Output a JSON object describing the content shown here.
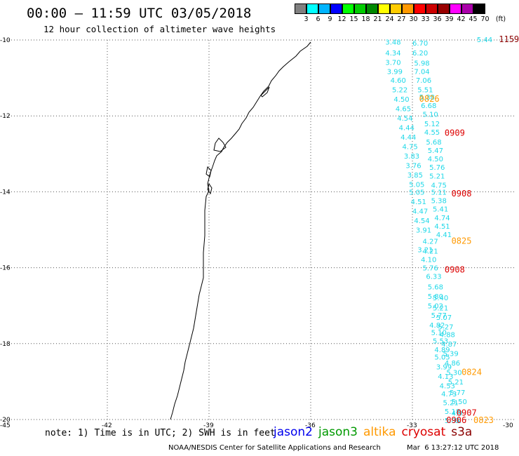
{
  "header": {
    "title": "00:00 – 11:59 UTC 03/05/2018",
    "subtitle": "12 hour collection of altimeter wave heights"
  },
  "color_scale": {
    "unit": "(ft)",
    "bins": [
      {
        "label": "3",
        "color": "#808080"
      },
      {
        "label": "6",
        "color": "#00ffff"
      },
      {
        "label": "9",
        "color": "#00b4ff"
      },
      {
        "label": "12",
        "color": "#0000ff"
      },
      {
        "label": "15",
        "color": "#00ff00"
      },
      {
        "label": "18",
        "color": "#00cc00"
      },
      {
        "label": "21",
        "color": "#008800"
      },
      {
        "label": "24",
        "color": "#ffff00"
      },
      {
        "label": "27",
        "color": "#ffcc00"
      },
      {
        "label": "30",
        "color": "#ff9900"
      },
      {
        "label": "33",
        "color": "#ff0000"
      },
      {
        "label": "36",
        "color": "#cc0000"
      },
      {
        "label": "39",
        "color": "#990000"
      },
      {
        "label": "42",
        "color": "#ff00ff"
      },
      {
        "label": "45",
        "color": "#aa00aa"
      },
      {
        "label": "70",
        "color": "#000000"
      }
    ]
  },
  "axes": {
    "lat_labels": [
      "-10",
      "-12",
      "-14",
      "-16",
      "-18",
      "-20"
    ],
    "lon_labels": [
      "-45",
      "-42",
      "-39",
      "-36",
      "-33",
      "-30"
    ]
  },
  "wave_heights": [
    {
      "v": "3.48",
      "lat": -10.05,
      "lon": -33.8
    },
    {
      "v": "6.70",
      "lat": -10.07,
      "lon": -33.0
    },
    {
      "v": "4.34",
      "lat": -10.33,
      "lon": -33.8
    },
    {
      "v": "6.20",
      "lat": -10.33,
      "lon": -33.0
    },
    {
      "v": "3.70",
      "lat": -10.58,
      "lon": -33.8
    },
    {
      "v": "5.98",
      "lat": -10.6,
      "lon": -32.95
    },
    {
      "v": "3.99",
      "lat": -10.82,
      "lon": -33.75
    },
    {
      "v": "7.04",
      "lat": -10.82,
      "lon": -32.95
    },
    {
      "v": "4.60",
      "lat": -11.05,
      "lon": -33.65
    },
    {
      "v": "7.06",
      "lat": -11.05,
      "lon": -32.9
    },
    {
      "v": "5.22",
      "lat": -11.3,
      "lon": -33.6
    },
    {
      "v": "5.51",
      "lat": -11.3,
      "lon": -32.85
    },
    {
      "v": "4.50",
      "lat": -11.55,
      "lon": -33.55
    },
    {
      "v": "5.38",
      "lat": -11.5,
      "lon": -32.8
    },
    {
      "v": "6.68",
      "lat": -11.72,
      "lon": -32.75
    },
    {
      "v": "4.65",
      "lat": -11.8,
      "lon": -33.5
    },
    {
      "v": "5.10",
      "lat": -11.95,
      "lon": -32.7
    },
    {
      "v": "4.54",
      "lat": -12.05,
      "lon": -33.45
    },
    {
      "v": "5.12",
      "lat": -12.2,
      "lon": -32.65
    },
    {
      "v": "4.44",
      "lat": -12.3,
      "lon": -33.4
    },
    {
      "v": "4.55",
      "lat": -12.42,
      "lon": -32.65
    },
    {
      "v": "4.44",
      "lat": -12.55,
      "lon": -33.35
    },
    {
      "v": "5.68",
      "lat": -12.68,
      "lon": -32.6
    },
    {
      "v": "4.75",
      "lat": -12.8,
      "lon": -33.3
    },
    {
      "v": "5.47",
      "lat": -12.9,
      "lon": -32.55
    },
    {
      "v": "3.83",
      "lat": -13.05,
      "lon": -33.25
    },
    {
      "v": "4.50",
      "lat": -13.12,
      "lon": -32.55
    },
    {
      "v": "3.76",
      "lat": -13.3,
      "lon": -33.2
    },
    {
      "v": "5.76",
      "lat": -13.35,
      "lon": -32.5
    },
    {
      "v": "3.85",
      "lat": -13.55,
      "lon": -33.15
    },
    {
      "v": "5.21",
      "lat": -13.58,
      "lon": -32.5
    },
    {
      "v": "5.05",
      "lat": -13.8,
      "lon": -33.1
    },
    {
      "v": "4.75",
      "lat": -13.82,
      "lon": -32.45
    },
    {
      "v": "5.05",
      "lat": -14.0,
      "lon": -33.1
    },
    {
      "v": "5.11",
      "lat": -14.0,
      "lon": -32.45
    },
    {
      "v": "4.51",
      "lat": -14.25,
      "lon": -33.05
    },
    {
      "v": "5.38",
      "lat": -14.22,
      "lon": -32.45
    },
    {
      "v": "4.47",
      "lat": -14.5,
      "lon": -33.0
    },
    {
      "v": "5.41",
      "lat": -14.45,
      "lon": -32.4
    },
    {
      "v": "4.74",
      "lat": -14.68,
      "lon": -32.35
    },
    {
      "v": "4.54",
      "lat": -14.75,
      "lon": -32.95
    },
    {
      "v": "4.51",
      "lat": -14.9,
      "lon": -32.35
    },
    {
      "v": "3.91",
      "lat": -15.0,
      "lon": -32.9
    },
    {
      "v": "4.41",
      "lat": -15.12,
      "lon": -32.3
    },
    {
      "v": "4.27",
      "lat": -15.3,
      "lon": -32.7
    },
    {
      "v": "3.21",
      "lat": -15.52,
      "lon": -32.85
    },
    {
      "v": "4.21",
      "lat": -15.55,
      "lon": -32.7
    },
    {
      "v": "4.10",
      "lat": -15.78,
      "lon": -32.75
    },
    {
      "v": "5.76",
      "lat": -16.0,
      "lon": -32.7
    },
    {
      "v": "6.33",
      "lat": -16.22,
      "lon": -32.6
    },
    {
      "v": "5.68",
      "lat": -16.5,
      "lon": -32.55
    },
    {
      "v": "5.80",
      "lat": -16.75,
      "lon": -32.55
    },
    {
      "v": "5.40",
      "lat": -16.78,
      "lon": -32.4
    },
    {
      "v": "5.02",
      "lat": -17.0,
      "lon": -32.55
    },
    {
      "v": "5.21",
      "lat": -17.05,
      "lon": -32.4
    },
    {
      "v": "5.77",
      "lat": -17.25,
      "lon": -32.45
    },
    {
      "v": "5.07",
      "lat": -17.3,
      "lon": -32.3
    },
    {
      "v": "4.82",
      "lat": -17.5,
      "lon": -32.5
    },
    {
      "v": "5.27",
      "lat": -17.55,
      "lon": -32.25
    },
    {
      "v": "5.10",
      "lat": -17.7,
      "lon": -32.45
    },
    {
      "v": "4.88",
      "lat": -17.75,
      "lon": -32.2
    },
    {
      "v": "5.53",
      "lat": -17.92,
      "lon": -32.4
    },
    {
      "v": "4.87",
      "lat": -18.0,
      "lon": -32.15
    },
    {
      "v": "4.89",
      "lat": -18.15,
      "lon": -32.35
    },
    {
      "v": "5.39",
      "lat": -18.25,
      "lon": -32.1
    },
    {
      "v": "5.05",
      "lat": -18.35,
      "lon": -32.35
    },
    {
      "v": "3.99",
      "lat": -18.6,
      "lon": -32.3
    },
    {
      "v": "4.86",
      "lat": -18.5,
      "lon": -32.05
    },
    {
      "v": "5.30",
      "lat": -18.75,
      "lon": -32.0
    },
    {
      "v": "4.13",
      "lat": -18.85,
      "lon": -32.25
    },
    {
      "v": "5.21",
      "lat": -19.0,
      "lon": -31.95
    },
    {
      "v": "4.53",
      "lat": -19.1,
      "lon": -32.2
    },
    {
      "v": "5.77",
      "lat": -19.28,
      "lon": -31.9
    },
    {
      "v": "4.73",
      "lat": -19.32,
      "lon": -32.15
    },
    {
      "v": "5.50",
      "lat": -19.52,
      "lon": -31.85
    },
    {
      "v": "5.21",
      "lat": -19.55,
      "lon": -32.1
    },
    {
      "v": "5.18",
      "lat": -19.78,
      "lon": -32.05
    },
    {
      "v": "4.9",
      "lat": -19.82,
      "lon": -31.85
    },
    {
      "v": "5.83",
      "lat": -20.02,
      "lon": -32.05
    },
    {
      "v": "6.",
      "lat": -20.02,
      "lon": -31.75
    },
    {
      "v": "5.44",
      "lat": -9.98,
      "lon": -31.1
    }
  ],
  "pass_times": [
    {
      "t": "1159",
      "lat": -9.98,
      "lon": -30.45,
      "color": "#8b0000"
    },
    {
      "t": "0826",
      "lat": -11.55,
      "lon": -32.8,
      "color": "#ff9900"
    },
    {
      "t": "0909",
      "lat": -12.45,
      "lon": -32.05,
      "color": "#dd0000"
    },
    {
      "t": "0908",
      "lat": -14.05,
      "lon": -31.85,
      "color": "#dd0000"
    },
    {
      "t": "0825",
      "lat": -15.3,
      "lon": -31.85,
      "color": "#ff9900"
    },
    {
      "t": "0908",
      "lat": -16.05,
      "lon": -32.05,
      "color": "#dd0000"
    },
    {
      "t": "0824",
      "lat": -18.75,
      "lon": -31.55,
      "color": "#ff9900"
    },
    {
      "t": "0907",
      "lat": -19.82,
      "lon": -31.7,
      "color": "#dd0000"
    },
    {
      "t": "0823",
      "lat": -20.02,
      "lon": -31.2,
      "color": "#ff9900"
    },
    {
      "t": "0906",
      "lat": -20.02,
      "lon": -32.0,
      "color": "#dd0000"
    }
  ],
  "footer": {
    "note": "note: 1) Time is in UTC; 2) SWH is in feet",
    "satellites": [
      {
        "name": "jason2",
        "color": "#0000ee"
      },
      {
        "name": "jason3",
        "color": "#009900"
      },
      {
        "name": "altika",
        "color": "#ff9900"
      },
      {
        "name": "cryosat",
        "color": "#dd0000"
      },
      {
        "name": "s3a",
        "color": "#8b0000"
      }
    ],
    "credit": "NOAA/NESDIS Center for Satellite Applications and Research",
    "timestamp": "Mar  6 13:27:12 UTC 2018"
  }
}
